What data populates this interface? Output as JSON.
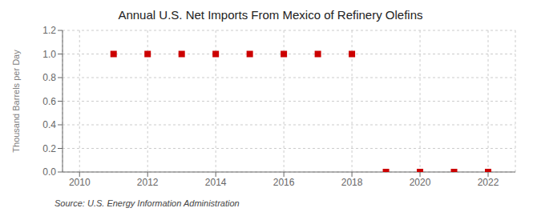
{
  "chart_data": {
    "type": "scatter",
    "title": "Annual U.S. Net Imports From Mexico of Refinery Olefins",
    "y_label": "Thousand Barrels per Day",
    "source": "Source: U.S. Energy Information Administration",
    "x": [
      2011,
      2012,
      2013,
      2014,
      2015,
      2016,
      2017,
      2018,
      2019,
      2020,
      2021,
      2022
    ],
    "values": [
      1.0,
      1.0,
      1.0,
      1.0,
      1.0,
      1.0,
      1.0,
      1.0,
      0.0,
      0.0,
      0.0,
      0.0
    ],
    "xlim": [
      2009.5,
      2022.8
    ],
    "ylim": [
      0.0,
      1.2
    ],
    "xticks": [
      2010,
      2012,
      2014,
      2016,
      2018,
      2020,
      2022
    ],
    "yticks": [
      {
        "value": 0.0,
        "label": "0.0"
      },
      0.2,
      0.4,
      0.6,
      0.8,
      {
        "value": 1.0,
        "label": "1.0"
      },
      1.2
    ],
    "color": "#cc0000",
    "marker": "square",
    "grid": true
  }
}
